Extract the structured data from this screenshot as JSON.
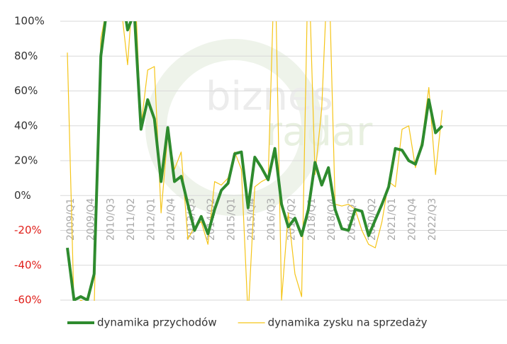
{
  "chart_data": {
    "type": "line",
    "watermark": [
      "biznes",
      "radar"
    ],
    "categories": [
      "2009/Q1",
      null,
      null,
      "2009/Q4",
      null,
      null,
      "2010/Q3",
      null,
      null,
      "2011/Q2",
      null,
      null,
      "2012/Q1",
      null,
      null,
      "2012/Q4",
      null,
      null,
      "2013/Q3",
      null,
      null,
      "2014/Q2",
      null,
      null,
      "2015/Q1",
      null,
      null,
      "2015/Q4",
      null,
      null,
      "2016/Q3",
      null,
      null,
      "2017/Q2",
      null,
      null,
      "2018/Q1",
      null,
      null,
      "2018/Q4",
      null,
      null,
      "2019/Q3",
      null,
      null,
      "2020/Q2",
      null,
      null,
      "2021/Q1",
      null,
      null,
      "2021/Q4",
      null,
      null,
      "2022/Q3",
      null,
      null
    ],
    "series": [
      {
        "name": "dynamika przychodów",
        "color": "#2e8b2e",
        "width": 4,
        "values": [
          -30,
          -60,
          -58,
          -60,
          -45,
          80,
          110,
          120,
          120,
          95,
          105,
          38,
          55,
          44,
          8,
          39,
          8,
          11,
          -5,
          -20,
          -12,
          -22,
          -8,
          3,
          7,
          24,
          25,
          -7,
          22,
          16,
          9,
          27,
          -5,
          -18,
          -13,
          -23,
          -8,
          19,
          6,
          16,
          -8,
          -19,
          -20,
          -8,
          -9,
          -23,
          -14,
          -5,
          5,
          27,
          26,
          20,
          18,
          29,
          55,
          36,
          40
        ]
      },
      {
        "name": "dynamika zysku na sprzedaży",
        "color": "#f5c518",
        "width": 1.2,
        "values": [
          82,
          -65,
          -60,
          -62,
          -65,
          90,
          110,
          120,
          110,
          75,
          130,
          40,
          72,
          74,
          -10,
          35,
          15,
          25,
          -25,
          -18,
          -15,
          -28,
          8,
          6,
          10,
          25,
          15,
          -70,
          5,
          8,
          10,
          140,
          -60,
          -10,
          -45,
          -58,
          140,
          12,
          50,
          140,
          -5,
          -6,
          -5,
          -8,
          -20,
          -28,
          -30,
          -15,
          8,
          5,
          38,
          40,
          16,
          32,
          62,
          12,
          49
        ]
      }
    ],
    "ylim": [
      -60,
      100
    ],
    "yticks": [
      {
        "value": -60,
        "label": "-60%"
      },
      {
        "value": -40,
        "label": "-40%"
      },
      {
        "value": -20,
        "label": "-20%"
      },
      {
        "value": 0,
        "label": "0%"
      },
      {
        "value": 20,
        "label": "20%"
      },
      {
        "value": 40,
        "label": "40%"
      },
      {
        "value": 60,
        "label": "60%"
      },
      {
        "value": 80,
        "label": "80%"
      },
      {
        "value": 100,
        "label": "100%"
      }
    ],
    "negative_label_color": "#e0201b",
    "grid": true
  }
}
